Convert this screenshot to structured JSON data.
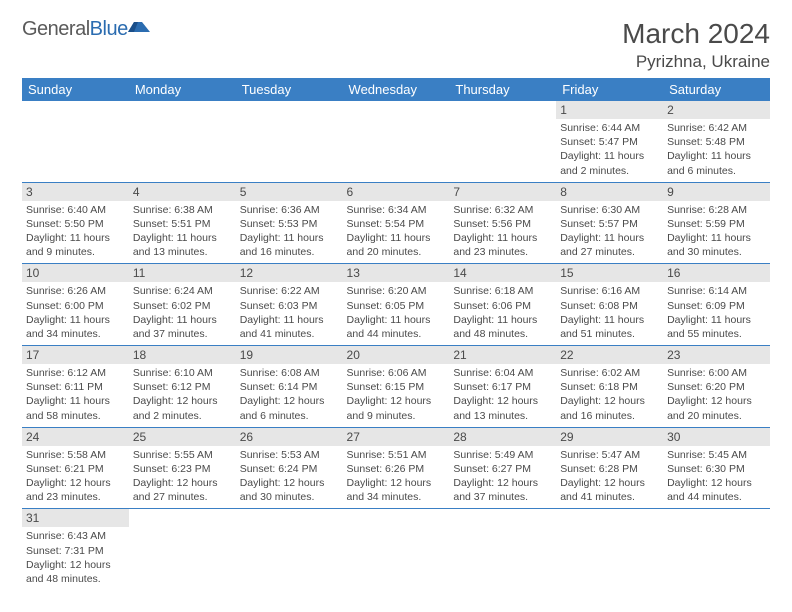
{
  "logo": {
    "text_gray": "General",
    "text_blue": "Blue"
  },
  "title": {
    "month_year": "March 2024",
    "location": "Pyrizhna, Ukraine"
  },
  "colors": {
    "header_bg": "#3a7fc4",
    "header_text": "#ffffff",
    "daynum_bg": "#e6e6e6",
    "border": "#3a7fc4",
    "text": "#4a4a4a",
    "logo_blue": "#2b6cb0"
  },
  "weekdays": [
    "Sunday",
    "Monday",
    "Tuesday",
    "Wednesday",
    "Thursday",
    "Friday",
    "Saturday"
  ],
  "weeks": [
    [
      {
        "empty": true
      },
      {
        "empty": true
      },
      {
        "empty": true
      },
      {
        "empty": true
      },
      {
        "empty": true
      },
      {
        "n": "1",
        "sr": "Sunrise: 6:44 AM",
        "ss": "Sunset: 5:47 PM",
        "dl": "Daylight: 11 hours and 2 minutes."
      },
      {
        "n": "2",
        "sr": "Sunrise: 6:42 AM",
        "ss": "Sunset: 5:48 PM",
        "dl": "Daylight: 11 hours and 6 minutes."
      }
    ],
    [
      {
        "n": "3",
        "sr": "Sunrise: 6:40 AM",
        "ss": "Sunset: 5:50 PM",
        "dl": "Daylight: 11 hours and 9 minutes."
      },
      {
        "n": "4",
        "sr": "Sunrise: 6:38 AM",
        "ss": "Sunset: 5:51 PM",
        "dl": "Daylight: 11 hours and 13 minutes."
      },
      {
        "n": "5",
        "sr": "Sunrise: 6:36 AM",
        "ss": "Sunset: 5:53 PM",
        "dl": "Daylight: 11 hours and 16 minutes."
      },
      {
        "n": "6",
        "sr": "Sunrise: 6:34 AM",
        "ss": "Sunset: 5:54 PM",
        "dl": "Daylight: 11 hours and 20 minutes."
      },
      {
        "n": "7",
        "sr": "Sunrise: 6:32 AM",
        "ss": "Sunset: 5:56 PM",
        "dl": "Daylight: 11 hours and 23 minutes."
      },
      {
        "n": "8",
        "sr": "Sunrise: 6:30 AM",
        "ss": "Sunset: 5:57 PM",
        "dl": "Daylight: 11 hours and 27 minutes."
      },
      {
        "n": "9",
        "sr": "Sunrise: 6:28 AM",
        "ss": "Sunset: 5:59 PM",
        "dl": "Daylight: 11 hours and 30 minutes."
      }
    ],
    [
      {
        "n": "10",
        "sr": "Sunrise: 6:26 AM",
        "ss": "Sunset: 6:00 PM",
        "dl": "Daylight: 11 hours and 34 minutes."
      },
      {
        "n": "11",
        "sr": "Sunrise: 6:24 AM",
        "ss": "Sunset: 6:02 PM",
        "dl": "Daylight: 11 hours and 37 minutes."
      },
      {
        "n": "12",
        "sr": "Sunrise: 6:22 AM",
        "ss": "Sunset: 6:03 PM",
        "dl": "Daylight: 11 hours and 41 minutes."
      },
      {
        "n": "13",
        "sr": "Sunrise: 6:20 AM",
        "ss": "Sunset: 6:05 PM",
        "dl": "Daylight: 11 hours and 44 minutes."
      },
      {
        "n": "14",
        "sr": "Sunrise: 6:18 AM",
        "ss": "Sunset: 6:06 PM",
        "dl": "Daylight: 11 hours and 48 minutes."
      },
      {
        "n": "15",
        "sr": "Sunrise: 6:16 AM",
        "ss": "Sunset: 6:08 PM",
        "dl": "Daylight: 11 hours and 51 minutes."
      },
      {
        "n": "16",
        "sr": "Sunrise: 6:14 AM",
        "ss": "Sunset: 6:09 PM",
        "dl": "Daylight: 11 hours and 55 minutes."
      }
    ],
    [
      {
        "n": "17",
        "sr": "Sunrise: 6:12 AM",
        "ss": "Sunset: 6:11 PM",
        "dl": "Daylight: 11 hours and 58 minutes."
      },
      {
        "n": "18",
        "sr": "Sunrise: 6:10 AM",
        "ss": "Sunset: 6:12 PM",
        "dl": "Daylight: 12 hours and 2 minutes."
      },
      {
        "n": "19",
        "sr": "Sunrise: 6:08 AM",
        "ss": "Sunset: 6:14 PM",
        "dl": "Daylight: 12 hours and 6 minutes."
      },
      {
        "n": "20",
        "sr": "Sunrise: 6:06 AM",
        "ss": "Sunset: 6:15 PM",
        "dl": "Daylight: 12 hours and 9 minutes."
      },
      {
        "n": "21",
        "sr": "Sunrise: 6:04 AM",
        "ss": "Sunset: 6:17 PM",
        "dl": "Daylight: 12 hours and 13 minutes."
      },
      {
        "n": "22",
        "sr": "Sunrise: 6:02 AM",
        "ss": "Sunset: 6:18 PM",
        "dl": "Daylight: 12 hours and 16 minutes."
      },
      {
        "n": "23",
        "sr": "Sunrise: 6:00 AM",
        "ss": "Sunset: 6:20 PM",
        "dl": "Daylight: 12 hours and 20 minutes."
      }
    ],
    [
      {
        "n": "24",
        "sr": "Sunrise: 5:58 AM",
        "ss": "Sunset: 6:21 PM",
        "dl": "Daylight: 12 hours and 23 minutes."
      },
      {
        "n": "25",
        "sr": "Sunrise: 5:55 AM",
        "ss": "Sunset: 6:23 PM",
        "dl": "Daylight: 12 hours and 27 minutes."
      },
      {
        "n": "26",
        "sr": "Sunrise: 5:53 AM",
        "ss": "Sunset: 6:24 PM",
        "dl": "Daylight: 12 hours and 30 minutes."
      },
      {
        "n": "27",
        "sr": "Sunrise: 5:51 AM",
        "ss": "Sunset: 6:26 PM",
        "dl": "Daylight: 12 hours and 34 minutes."
      },
      {
        "n": "28",
        "sr": "Sunrise: 5:49 AM",
        "ss": "Sunset: 6:27 PM",
        "dl": "Daylight: 12 hours and 37 minutes."
      },
      {
        "n": "29",
        "sr": "Sunrise: 5:47 AM",
        "ss": "Sunset: 6:28 PM",
        "dl": "Daylight: 12 hours and 41 minutes."
      },
      {
        "n": "30",
        "sr": "Sunrise: 5:45 AM",
        "ss": "Sunset: 6:30 PM",
        "dl": "Daylight: 12 hours and 44 minutes."
      }
    ],
    [
      {
        "n": "31",
        "sr": "Sunrise: 6:43 AM",
        "ss": "Sunset: 7:31 PM",
        "dl": "Daylight: 12 hours and 48 minutes."
      },
      {
        "empty": true
      },
      {
        "empty": true
      },
      {
        "empty": true
      },
      {
        "empty": true
      },
      {
        "empty": true
      },
      {
        "empty": true
      }
    ]
  ]
}
